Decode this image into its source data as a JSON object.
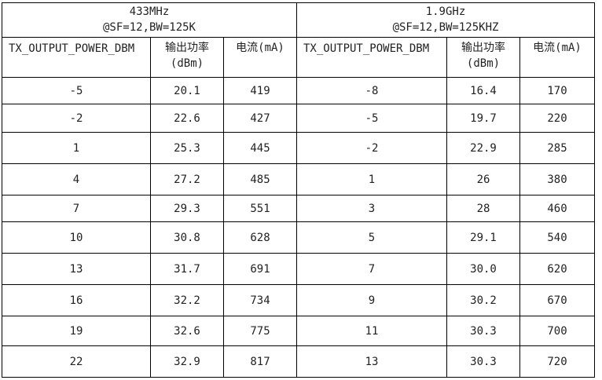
{
  "groups": [
    {
      "freq": "433MHz",
      "cond": "@SF=12,BW=125K"
    },
    {
      "freq": "1.9GHz",
      "cond": "@SF=12,BW=125KHZ"
    }
  ],
  "headers": {
    "setting": "TX_OUTPUT_POWER_DBM",
    "power_line1": "输出功率",
    "power_line2": "(dBm)",
    "current": "电流(mA)"
  },
  "rows": [
    {
      "a_set": "-5",
      "a_pow": "20.1",
      "a_cur": "419",
      "b_set": "-8",
      "b_pow": "16.4",
      "b_cur": "170"
    },
    {
      "a_set": "-2",
      "a_pow": "22.6",
      "a_cur": "427",
      "b_set": "-5",
      "b_pow": "19.7",
      "b_cur": "220"
    },
    {
      "a_set": "1",
      "a_pow": "25.3",
      "a_cur": "445",
      "b_set": "-2",
      "b_pow": "22.9",
      "b_cur": "285"
    },
    {
      "a_set": "4",
      "a_pow": "27.2",
      "a_cur": "485",
      "b_set": "1",
      "b_pow": "26",
      "b_cur": "380"
    },
    {
      "a_set": "7",
      "a_pow": "29.3",
      "a_cur": "551",
      "b_set": "3",
      "b_pow": "28",
      "b_cur": "460"
    },
    {
      "a_set": "10",
      "a_pow": "30.8",
      "a_cur": "628",
      "b_set": "5",
      "b_pow": "29.1",
      "b_cur": "540"
    },
    {
      "a_set": "13",
      "a_pow": "31.7",
      "a_cur": "691",
      "b_set": "7",
      "b_pow": "30.0",
      "b_cur": "620"
    },
    {
      "a_set": "16",
      "a_pow": "32.2",
      "a_cur": "734",
      "b_set": "9",
      "b_pow": "30.2",
      "b_cur": "670"
    },
    {
      "a_set": "19",
      "a_pow": "32.6",
      "a_cur": "775",
      "b_set": "11",
      "b_pow": "30.3",
      "b_cur": "700"
    },
    {
      "a_set": "22",
      "a_pow": "32.9",
      "a_cur": "817",
      "b_set": "13",
      "b_pow": "30.3",
      "b_cur": "720"
    }
  ]
}
